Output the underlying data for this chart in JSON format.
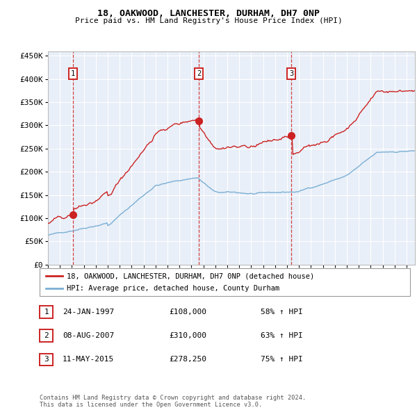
{
  "title": "18, OAKWOOD, LANCHESTER, DURHAM, DH7 0NP",
  "subtitle": "Price paid vs. HM Land Registry's House Price Index (HPI)",
  "legend_line1": "18, OAKWOOD, LANCHESTER, DURHAM, DH7 0NP (detached house)",
  "legend_line2": "HPI: Average price, detached house, County Durham",
  "footer1": "Contains HM Land Registry data © Crown copyright and database right 2024.",
  "footer2": "This data is licensed under the Open Government Licence v3.0.",
  "transactions": [
    {
      "num": 1,
      "date": "24-JAN-1997",
      "price": "£108,000",
      "hpi_pct": "58% ↑ HPI",
      "x_year": 1997.07,
      "y_val": 108000
    },
    {
      "num": 2,
      "date": "08-AUG-2007",
      "price": "£310,000",
      "hpi_pct": "63% ↑ HPI",
      "x_year": 2007.62,
      "y_val": 310000
    },
    {
      "num": 3,
      "date": "11-MAY-2015",
      "price": "£278,250",
      "hpi_pct": "75% ↑ HPI",
      "x_year": 2015.37,
      "y_val": 278250
    }
  ],
  "ylim": [
    0,
    460000
  ],
  "xlim_start": 1995.0,
  "xlim_end": 2025.7,
  "hpi_color": "#7BAFD4",
  "price_color": "#CC2222",
  "plot_bg": "#E8EFF8",
  "grid_color": "#FFFFFF",
  "yticks": [
    0,
    50000,
    100000,
    150000,
    200000,
    250000,
    300000,
    350000,
    400000,
    450000
  ],
  "ytick_labels": [
    "£0",
    "£50K",
    "£100K",
    "£150K",
    "£200K",
    "£250K",
    "£300K",
    "£350K",
    "£400K",
    "£450K"
  ]
}
